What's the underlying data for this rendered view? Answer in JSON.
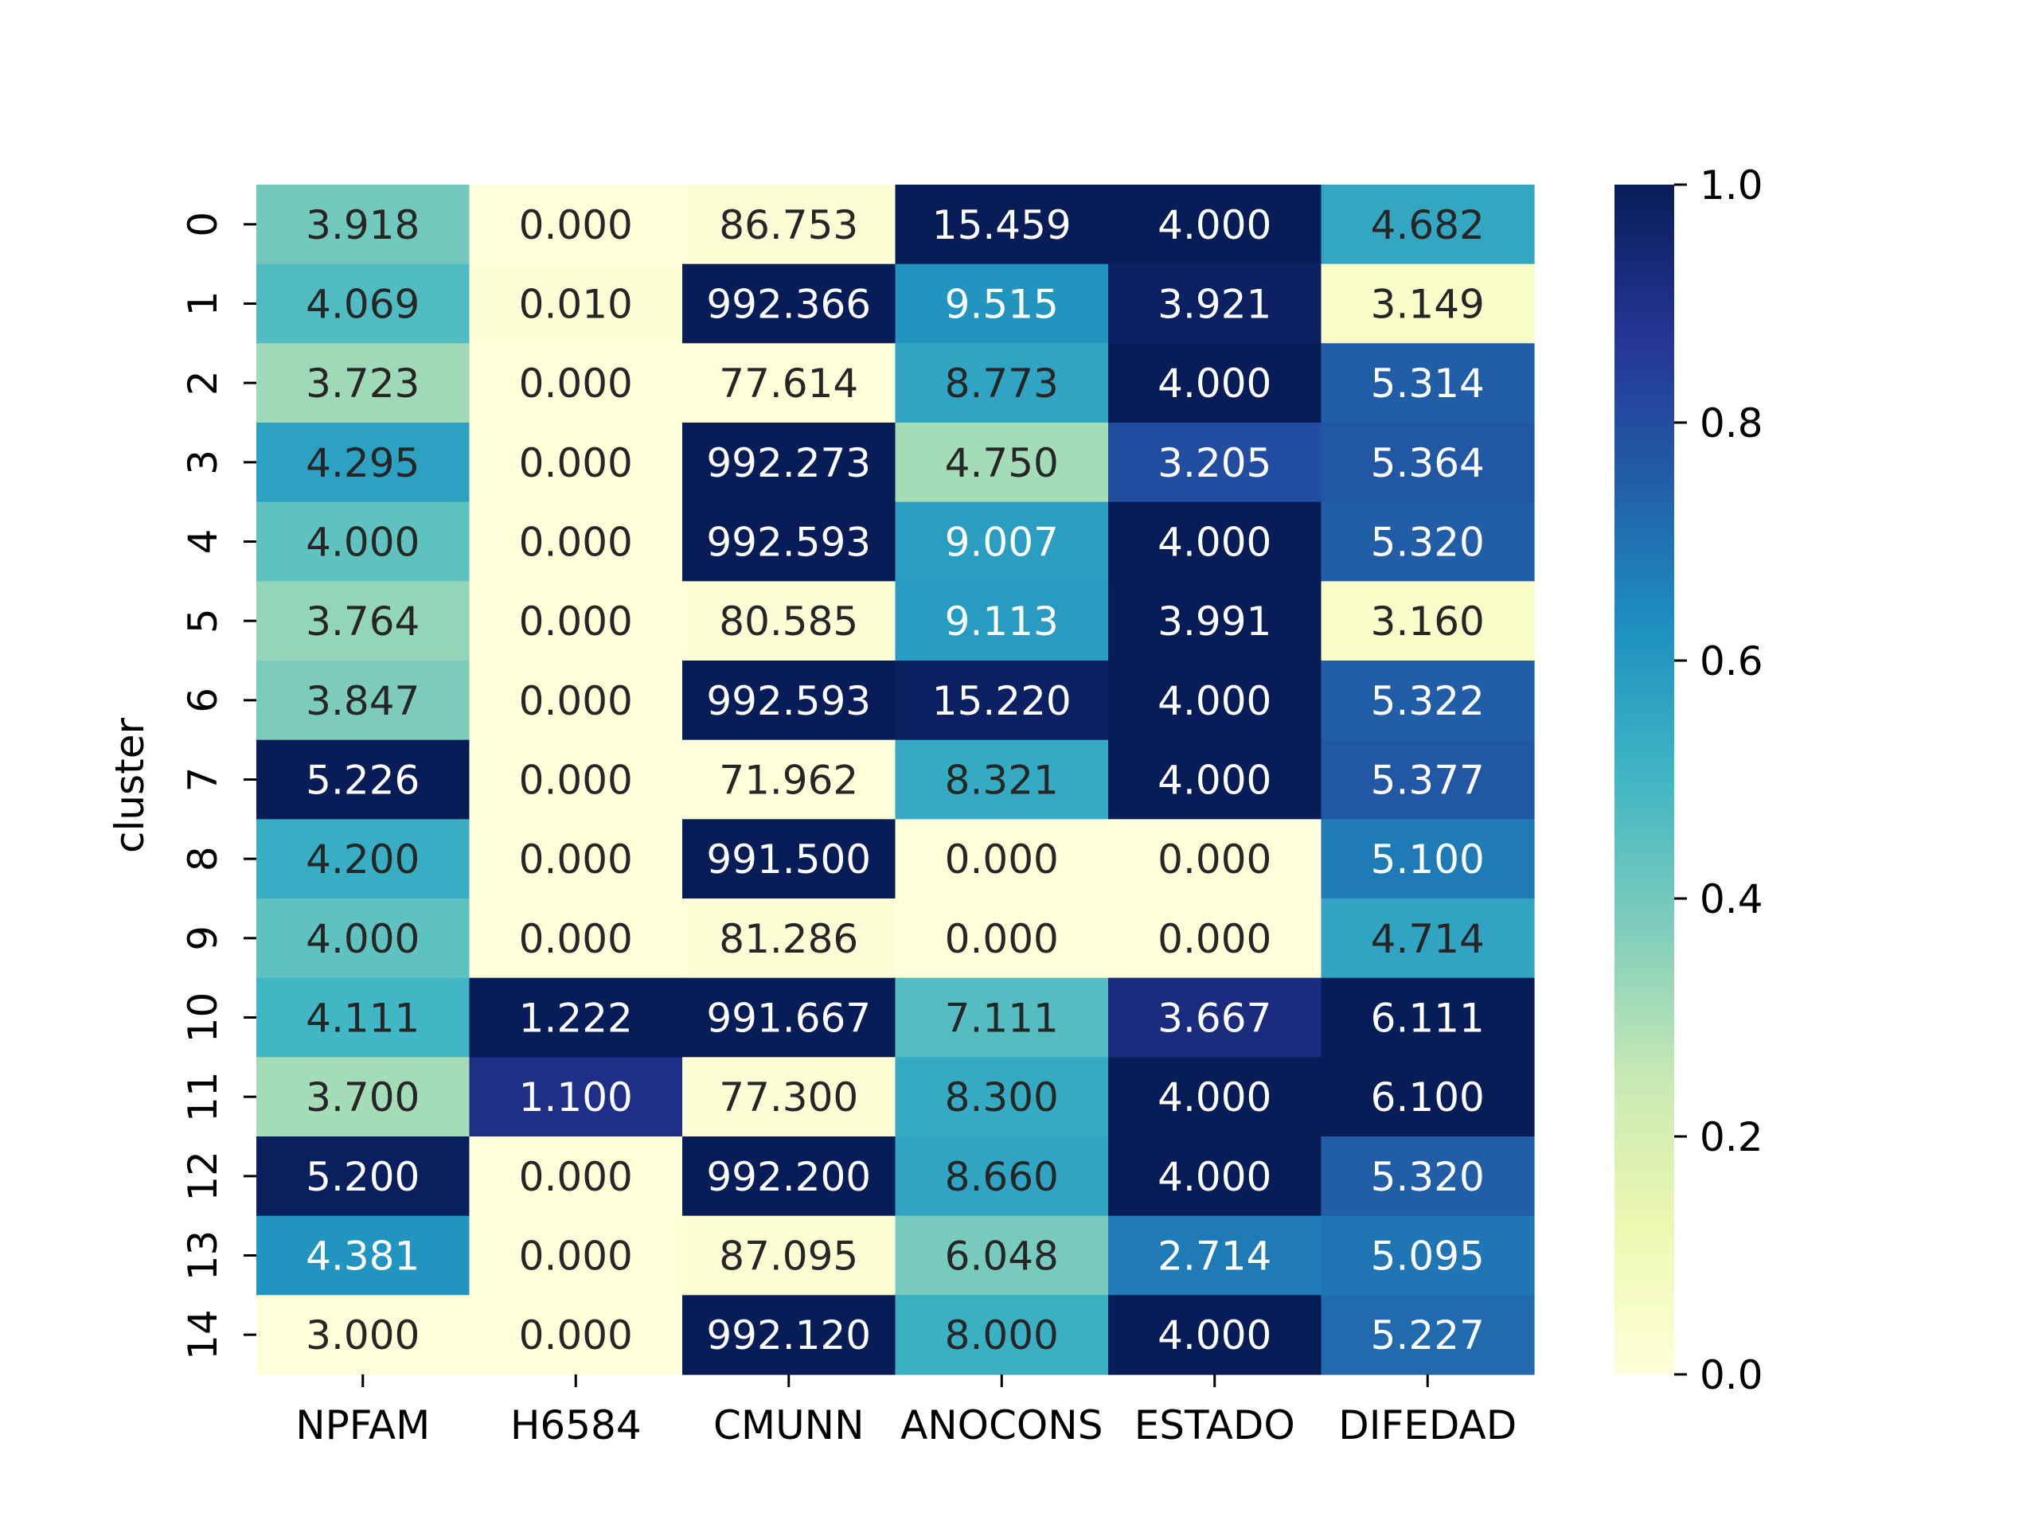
{
  "chart_data": {
    "type": "heatmap",
    "title": "",
    "xlabel": "",
    "ylabel": "cluster",
    "columns": [
      "NPFAM",
      "H6584",
      "CMUNN",
      "ANOCONS",
      "ESTADO",
      "DIFEDAD"
    ],
    "rows": [
      "0",
      "1",
      "2",
      "3",
      "4",
      "5",
      "6",
      "7",
      "8",
      "9",
      "10",
      "11",
      "12",
      "13",
      "14"
    ],
    "value_labels": [
      [
        "3.918",
        "0.000",
        "86.753",
        "15.459",
        "4.000",
        "4.682"
      ],
      [
        "4.069",
        "0.010",
        "992.366",
        "9.515",
        "3.921",
        "3.149"
      ],
      [
        "3.723",
        "0.000",
        "77.614",
        "8.773",
        "4.000",
        "5.314"
      ],
      [
        "4.295",
        "0.000",
        "992.273",
        "4.750",
        "3.205",
        "5.364"
      ],
      [
        "4.000",
        "0.000",
        "992.593",
        "9.007",
        "4.000",
        "5.320"
      ],
      [
        "3.764",
        "0.000",
        "80.585",
        "9.113",
        "3.991",
        "3.160"
      ],
      [
        "3.847",
        "0.000",
        "992.593",
        "15.220",
        "4.000",
        "5.322"
      ],
      [
        "5.226",
        "0.000",
        "71.962",
        "8.321",
        "4.000",
        "5.377"
      ],
      [
        "4.200",
        "0.000",
        "991.500",
        "0.000",
        "0.000",
        "5.100"
      ],
      [
        "4.000",
        "0.000",
        "81.286",
        "0.000",
        "0.000",
        "4.714"
      ],
      [
        "4.111",
        "1.222",
        "991.667",
        "7.111",
        "3.667",
        "6.111"
      ],
      [
        "3.700",
        "1.100",
        "77.300",
        "8.300",
        "4.000",
        "6.100"
      ],
      [
        "5.200",
        "0.000",
        "992.200",
        "8.660",
        "4.000",
        "5.320"
      ],
      [
        "4.381",
        "0.000",
        "87.095",
        "6.048",
        "2.714",
        "5.095"
      ],
      [
        "3.000",
        "0.000",
        "992.120",
        "8.000",
        "4.000",
        "5.227"
      ]
    ],
    "normalized": [
      [
        0.4,
        0.0,
        0.01,
        1.0,
        1.0,
        0.55
      ],
      [
        0.47,
        0.01,
        1.0,
        0.61,
        0.98,
        0.05
      ],
      [
        0.32,
        0.0,
        0.0,
        0.56,
        1.0,
        0.75
      ],
      [
        0.57,
        0.0,
        1.0,
        0.31,
        0.8,
        0.77
      ],
      [
        0.44,
        0.0,
        1.0,
        0.58,
        1.0,
        0.75
      ],
      [
        0.34,
        0.0,
        0.01,
        0.59,
        1.0,
        0.05
      ],
      [
        0.38,
        0.0,
        1.0,
        0.98,
        1.0,
        0.75
      ],
      [
        1.0,
        0.0,
        0.0,
        0.54,
        1.0,
        0.77
      ],
      [
        0.53,
        0.0,
        1.0,
        0.0,
        0.0,
        0.68
      ],
      [
        0.44,
        0.0,
        0.01,
        0.0,
        0.0,
        0.56
      ],
      [
        0.5,
        1.0,
        1.0,
        0.46,
        0.92,
        1.0
      ],
      [
        0.31,
        0.9,
        0.01,
        0.54,
        1.0,
        1.0
      ],
      [
        0.99,
        0.0,
        1.0,
        0.56,
        1.0,
        0.75
      ],
      [
        0.61,
        0.0,
        0.02,
        0.39,
        0.68,
        0.69
      ],
      [
        0.0,
        0.0,
        1.0,
        0.52,
        1.0,
        0.72
      ]
    ],
    "colorbar": {
      "range": [
        0.0,
        1.0
      ],
      "ticks": [
        "0.0",
        "0.2",
        "0.4",
        "0.6",
        "0.8",
        "1.0"
      ],
      "colormap": "YlGnBu",
      "colors": [
        "#ffffd9",
        "#edf8b1",
        "#c7e9b4",
        "#7fcdbb",
        "#41b6c4",
        "#1d91c0",
        "#225ea8",
        "#253494",
        "#081d58"
      ]
    },
    "legend": "colorbar-right",
    "grid": false
  }
}
